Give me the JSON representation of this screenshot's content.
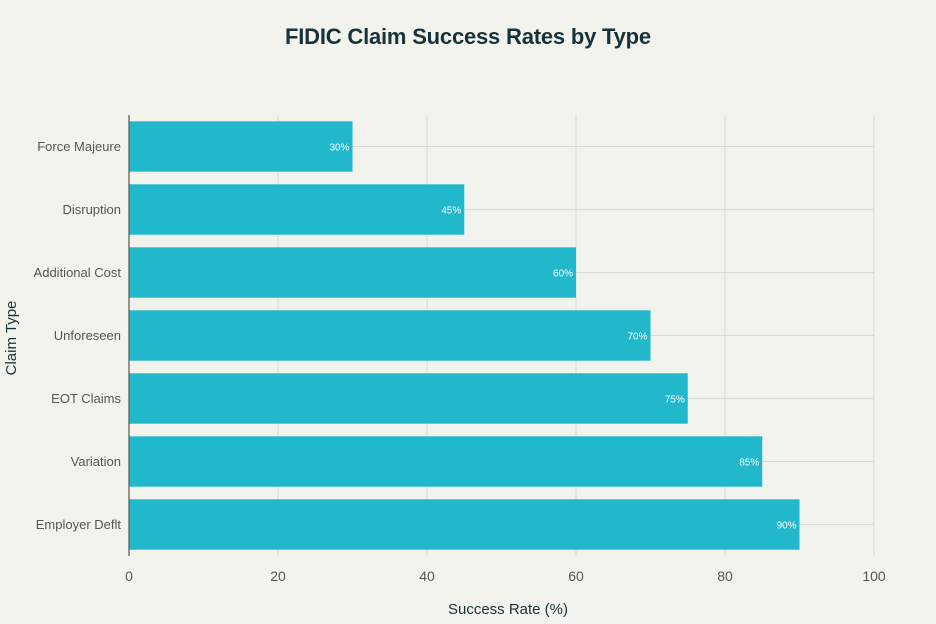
{
  "chart_data": {
    "type": "bar",
    "orientation": "horizontal",
    "title": "FIDIC Claim Success Rates by Type",
    "xlabel": "Success Rate (%)",
    "ylabel": "Claim Type",
    "xlim": [
      0,
      100
    ],
    "xticks": [
      0,
      20,
      40,
      60,
      80,
      100
    ],
    "grid": true,
    "categories": [
      "Force Majeure",
      "Disruption",
      "Additional Cost",
      "Unforeseen",
      "EOT Claims",
      "Variation",
      "Employer Deflt"
    ],
    "values": [
      30,
      45,
      60,
      70,
      75,
      85,
      90
    ],
    "data_labels": [
      "30%",
      "45%",
      "60%",
      "70%",
      "75%",
      "85%",
      "90%"
    ],
    "colors": {
      "bar": "#21b8cc",
      "grid": "#d9d9d2",
      "axis": "#555555",
      "text": "#555555",
      "title": "#173238",
      "label": "#ffffff"
    }
  }
}
